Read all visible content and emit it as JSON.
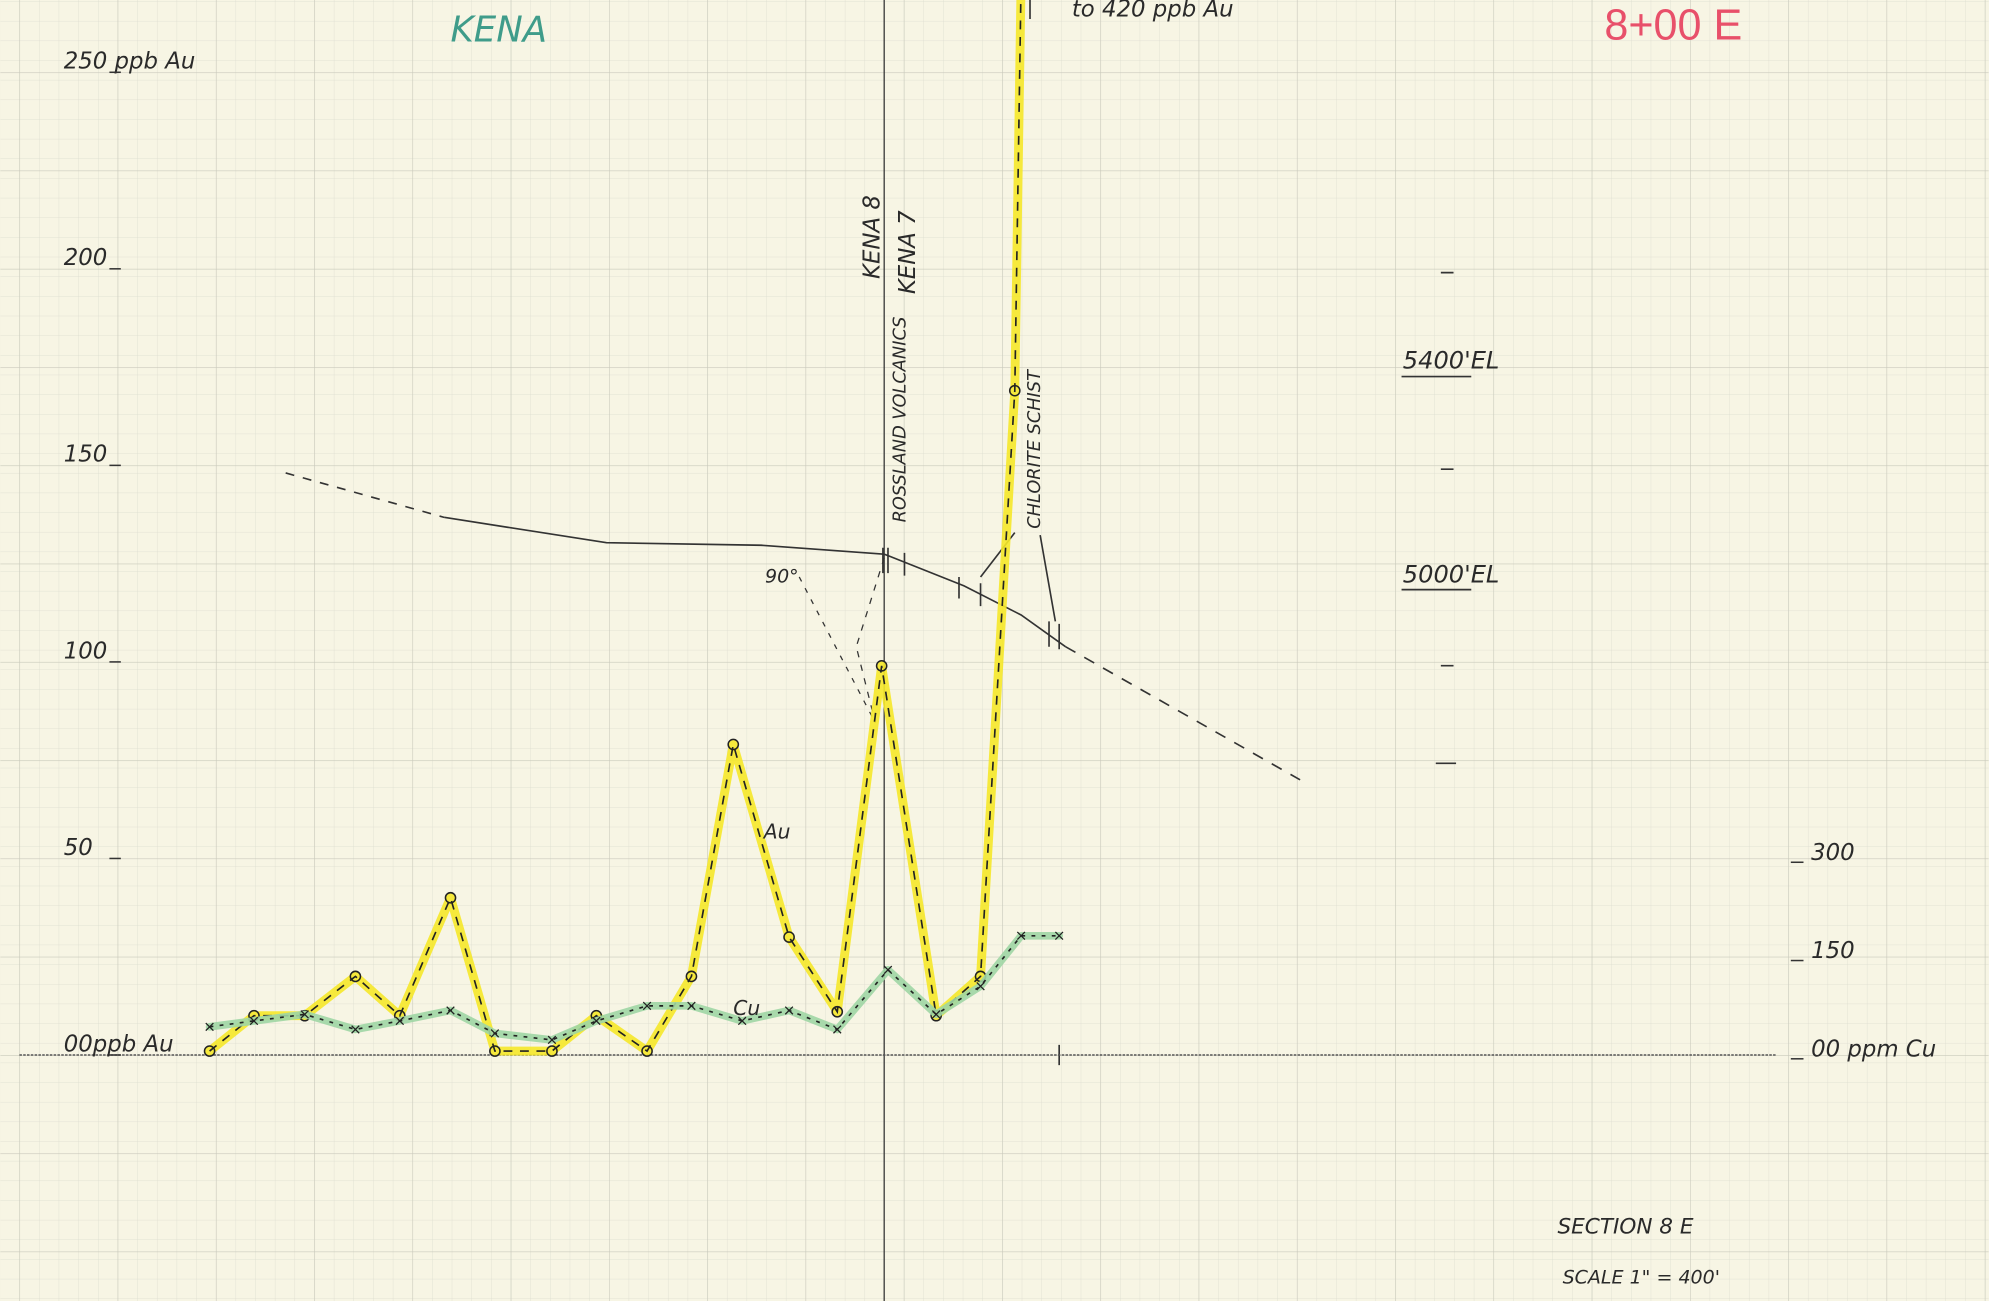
{
  "chart_data": {
    "type": "line",
    "title": "KENA",
    "subtitle": "8+00 E",
    "note": "to 420 ppb Au",
    "section": "SECTION 8 E",
    "scale": "SCALE 1\" = 400'",
    "elevation_labels": [
      "5400'EL",
      "5000'EL"
    ],
    "contact_labels": [
      "KENA 8",
      "KENA 7"
    ],
    "rock_labels": [
      "ROSSLAND VOLCANICS",
      "CHLORITE SCHIST"
    ],
    "dip_label": "90°",
    "x": [
      0,
      35,
      75,
      115,
      150,
      190,
      225,
      270,
      305,
      345,
      380,
      413,
      457,
      495,
      530,
      573,
      608,
      635,
      647
    ],
    "x2": [
      0,
      35,
      75,
      115,
      150,
      190,
      225,
      270,
      305,
      345,
      380,
      420,
      457,
      495,
      535,
      573,
      608,
      640,
      670
    ],
    "xlim": [
      -150,
      1235
    ],
    "ylim": [
      0,
      250
    ],
    "yticks": [
      {
        "value": 0,
        "label": "00ppb Au"
      },
      50,
      100,
      150,
      200,
      {
        "value": 250,
        "label": "250 ppb Au"
      }
    ],
    "y2lim": [
      0,
      1500
    ],
    "y2ticks": [
      {
        "value": 0,
        "label": "00 ppm Cu"
      },
      150,
      300
    ],
    "grid": true,
    "series": [
      {
        "name": "Au",
        "color": "#f5e829",
        "values": [
          1,
          10,
          10,
          20,
          10,
          40,
          1,
          1,
          10,
          1,
          20,
          79,
          30,
          11,
          99,
          10,
          20,
          169,
          420
        ]
      },
      {
        "name": "Cu",
        "color": "#9fd6a4",
        "axis": "y2",
        "values": [
          43,
          52,
          62,
          39,
          52,
          68,
          33,
          23,
          52,
          75,
          75,
          52,
          68,
          39,
          130,
          62,
          105,
          182,
          182
        ]
      }
    ]
  }
}
